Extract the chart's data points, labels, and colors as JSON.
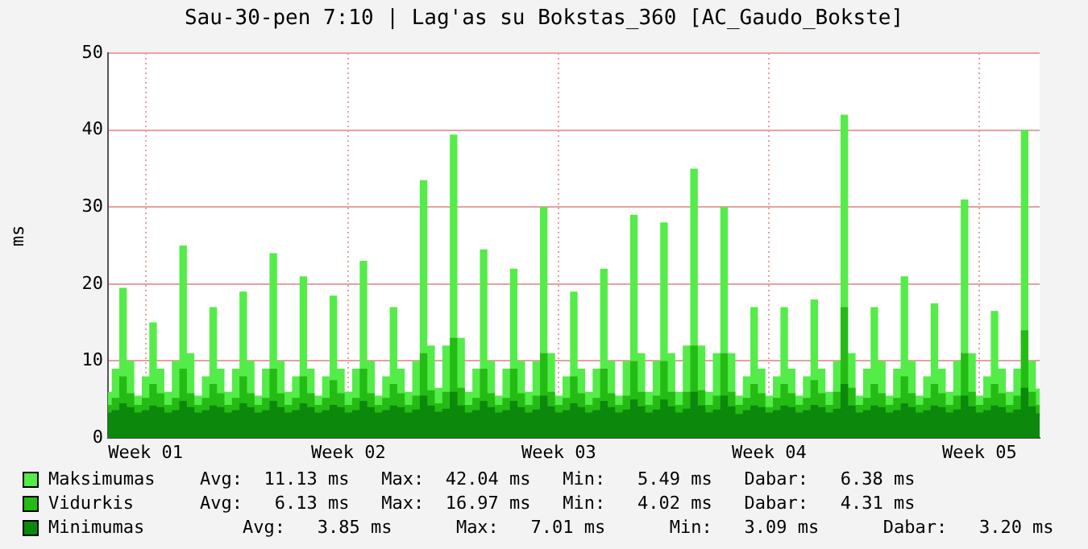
{
  "chart_data": {
    "type": "area",
    "title": "Sau-30-pen 7:10 | Lag'as su Bokstas_360 [AC_Gaudo_Bokste]",
    "ylabel": "ms",
    "categories": [
      null,
      null,
      null,
      null,
      null,
      "Week 01",
      null,
      null,
      null,
      null,
      null,
      null,
      null,
      null,
      null,
      null,
      null,
      null,
      null,
      null,
      null,
      null,
      null,
      null,
      null,
      null,
      null,
      null,
      null,
      null,
      null,
      null,
      "Week 02",
      null,
      null,
      null,
      null,
      null,
      null,
      null,
      null,
      null,
      null,
      null,
      null,
      null,
      null,
      null,
      null,
      null,
      null,
      null,
      null,
      null,
      null,
      null,
      null,
      null,
      null,
      null,
      "Week 03",
      null,
      null,
      null,
      null,
      null,
      null,
      null,
      null,
      null,
      null,
      null,
      null,
      null,
      null,
      null,
      null,
      null,
      null,
      null,
      null,
      null,
      null,
      null,
      null,
      null,
      null,
      null,
      "Week 04",
      null,
      null,
      null,
      null,
      null,
      null,
      null,
      null,
      null,
      null,
      null,
      null,
      null,
      null,
      null,
      null,
      null,
      null,
      null,
      null,
      null,
      null,
      null,
      null,
      null,
      null,
      null,
      "Week 05",
      null,
      null,
      null,
      null,
      null,
      null,
      null,
      null
    ],
    "series": [
      {
        "name": "Maksimumas",
        "color": "#54ec48",
        "values": [
          6,
          9,
          19.5,
          10,
          5.5,
          8,
          15,
          9,
          6,
          10,
          25,
          11,
          5.5,
          8,
          17,
          9,
          6,
          9,
          19,
          10,
          5.5,
          9,
          24,
          10,
          6,
          8,
          21,
          9,
          5.5,
          8,
          18.5,
          9,
          6,
          9,
          23,
          10,
          5.5,
          8,
          17,
          9,
          6,
          10,
          33.5,
          12,
          6.5,
          12,
          39.4,
          13,
          6,
          9,
          24.5,
          10,
          5.5,
          9,
          22,
          10,
          6,
          10,
          30,
          11,
          5.5,
          8,
          19,
          9,
          6,
          9,
          22,
          10,
          5.5,
          10,
          29,
          11,
          6,
          10,
          28,
          11,
          6,
          12,
          35,
          12,
          6,
          11,
          30,
          11,
          5.5,
          8,
          17,
          9,
          5.5,
          8,
          17,
          9,
          5.5,
          8,
          18,
          9,
          6,
          10,
          42,
          11,
          5.5,
          9,
          17,
          10,
          5.5,
          9,
          21,
          10,
          5.5,
          8,
          17.5,
          9,
          6,
          10,
          31,
          11,
          5.5,
          8,
          16.5,
          9,
          6,
          9,
          40,
          10,
          6.4
        ]
      },
      {
        "name": "Vidurkis",
        "color": "#24bc14",
        "values": [
          4.3,
          5.2,
          8,
          5.8,
          4.3,
          5.2,
          7,
          5.8,
          4.3,
          5.2,
          9,
          5.8,
          4.3,
          5.2,
          7,
          5.8,
          4.3,
          5.2,
          8,
          5.8,
          4.3,
          5.2,
          9,
          5.8,
          4.3,
          5.2,
          8,
          5.8,
          4.3,
          5.2,
          7.5,
          5.8,
          4.3,
          5.2,
          9,
          5.8,
          4.3,
          5.2,
          7,
          5.8,
          4.3,
          5.5,
          11,
          6.2,
          4.5,
          6,
          13,
          6.5,
          4.3,
          5.2,
          9,
          5.8,
          4.3,
          5.2,
          9,
          5.8,
          4.3,
          5.5,
          11,
          6,
          4.3,
          5.2,
          8,
          5.8,
          4.3,
          5.2,
          9,
          5.8,
          4.3,
          5.5,
          10,
          6,
          4.3,
          5.5,
          10,
          6,
          4.3,
          6,
          12,
          6.2,
          4.3,
          5.5,
          11,
          6,
          4.3,
          5.2,
          7,
          5.8,
          4,
          5.2,
          7,
          5.8,
          4.3,
          5.2,
          7.5,
          5.8,
          4.3,
          6,
          17,
          6.5,
          4.3,
          5.2,
          7,
          5.8,
          4.3,
          5.2,
          8,
          5.8,
          4.3,
          5.2,
          7,
          5.8,
          4.3,
          5.5,
          11,
          6,
          4.3,
          5.2,
          7,
          5.8,
          4.3,
          5.5,
          14,
          6,
          4.3
        ]
      },
      {
        "name": "Minimumas",
        "color": "#0c880c",
        "values": [
          3.3,
          3.6,
          4.5,
          4,
          3.3,
          3.6,
          4.2,
          4,
          3.3,
          3.6,
          4.8,
          4,
          3.3,
          3.6,
          4.2,
          4,
          3.3,
          3.6,
          4.5,
          4,
          3.3,
          3.6,
          4.8,
          4,
          3.3,
          3.6,
          4.5,
          4,
          3.3,
          3.6,
          4.3,
          4,
          3.3,
          3.6,
          4.8,
          4,
          3.3,
          3.6,
          4.2,
          4,
          3.3,
          3.7,
          5.5,
          4.2,
          3.4,
          3.8,
          6,
          4.2,
          3.3,
          3.6,
          4.8,
          4,
          3.3,
          3.6,
          4.8,
          4,
          3.3,
          3.7,
          5.5,
          4.1,
          3.3,
          3.6,
          4.5,
          4,
          3.3,
          3.6,
          4.8,
          4,
          3.3,
          3.7,
          5,
          4.1,
          3.3,
          3.7,
          5,
          4.1,
          3.3,
          3.8,
          6,
          4.2,
          3.3,
          3.7,
          5.5,
          4.1,
          3.1,
          3.6,
          4.2,
          4,
          3.3,
          3.6,
          4.2,
          4,
          3.3,
          3.6,
          4.3,
          4,
          3.3,
          3.8,
          7,
          4.2,
          3.3,
          3.6,
          4.2,
          4,
          3.3,
          3.6,
          4.5,
          4,
          3.3,
          3.6,
          4.2,
          4,
          3.3,
          3.7,
          5.5,
          4.1,
          3.3,
          3.6,
          4.2,
          4,
          3.3,
          3.7,
          6.5,
          4.1,
          3.2
        ]
      }
    ],
    "ylim": [
      0,
      50
    ],
    "yticks": [
      0,
      10,
      20,
      30,
      40,
      50
    ],
    "grid": true,
    "legend": "bottom",
    "annotations": [
      "Avg:  11.13 ms   Max:  42.04 ms   Min:   5.49 ms   Dabar:   6.38 ms",
      "Avg:   6.13 ms   Max:  16.97 ms   Min:   4.02 ms   Dabar:   4.31 ms",
      "    Avg:   3.85 ms      Max:   7.01 ms      Min:   3.09 ms      Dabar:   3.20 ms"
    ]
  }
}
